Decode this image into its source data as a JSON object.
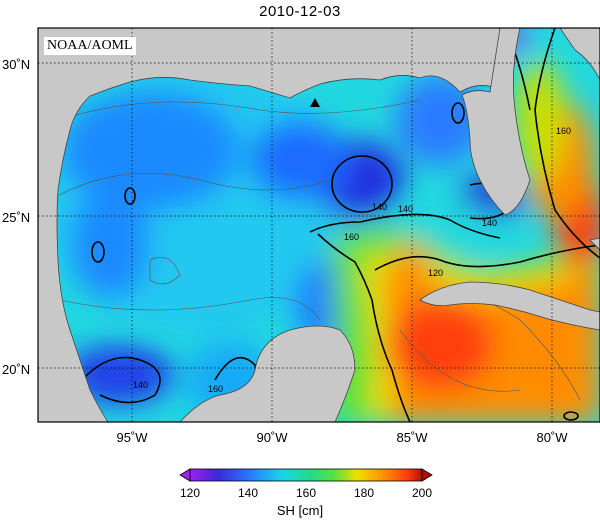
{
  "title": "2010-12-03",
  "credit": "NOAA/AOML",
  "axes": {
    "y_ticks": [
      {
        "key": "30n",
        "label": "30˚N"
      },
      {
        "key": "25n",
        "label": "25˚N"
      },
      {
        "key": "20n",
        "label": "20˚N"
      }
    ],
    "x_ticks": [
      {
        "key": "95w",
        "label": "95˚W"
      },
      {
        "key": "90w",
        "label": "90˚W"
      },
      {
        "key": "85w",
        "label": "85˚W"
      },
      {
        "key": "80w",
        "label": "80˚W"
      }
    ]
  },
  "contour_labels": [
    "140",
    "140",
    "140",
    "140",
    "160",
    "160",
    "120",
    "160"
  ],
  "colorbar": {
    "ticks": [
      "120",
      "140",
      "160",
      "180",
      "200"
    ],
    "unit_label": "SH [cm]",
    "colors": [
      "#a020f0",
      "#3c28d8",
      "#2a7bff",
      "#18d6e8",
      "#22dc8a",
      "#58e040",
      "#f0e000",
      "#ff8c00",
      "#ff3a10",
      "#b01000"
    ]
  },
  "marker": "black triangle",
  "colors": {
    "land": "#c8c8c8",
    "ocean_low": "#2850e0",
    "ocean_mid": "#20e0e0",
    "ocean_high": "#ff3a10"
  }
}
